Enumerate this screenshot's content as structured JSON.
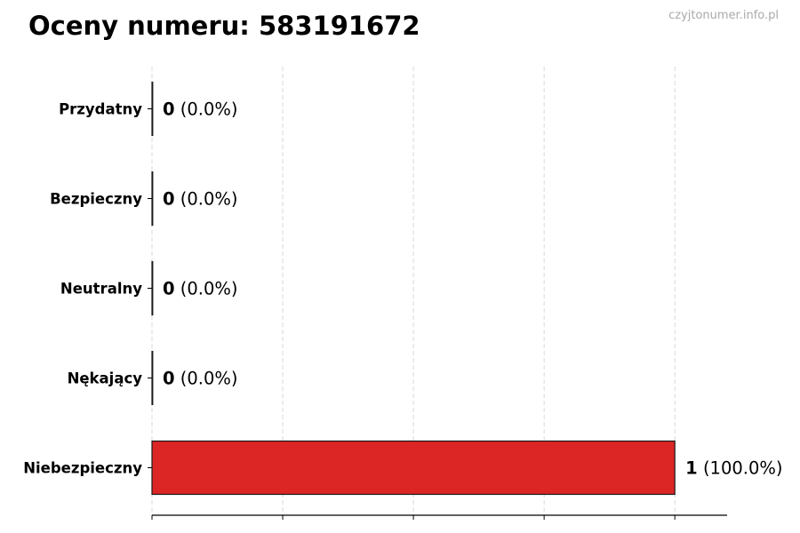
{
  "header": {
    "title": "Oceny numeru: 583191672",
    "watermark": "czyjtonumer.info.pl"
  },
  "chart_data": {
    "type": "bar",
    "orientation": "horizontal",
    "title": "Oceny numeru: 583191672",
    "categories": [
      "Przydatny",
      "Bezpieczny",
      "Neutralny",
      "Nękający",
      "Niebezpieczny"
    ],
    "values": [
      0,
      0,
      0,
      0,
      1
    ],
    "labels": [
      {
        "count": "0",
        "pct": "(0.0%)"
      },
      {
        "count": "0",
        "pct": "(0.0%)"
      },
      {
        "count": "0",
        "pct": "(0.0%)"
      },
      {
        "count": "0",
        "pct": "(0.0%)"
      },
      {
        "count": "1",
        "pct": "(100.0%)"
      }
    ],
    "xlim": [
      0,
      1.1
    ],
    "xticks": [
      0,
      0.25,
      0.5,
      0.75,
      1.0
    ],
    "grid": "x, dashed",
    "colors": {
      "bar": "#dc2626",
      "edge": "#1a1a1a",
      "grid": "#d0d0d0"
    }
  }
}
